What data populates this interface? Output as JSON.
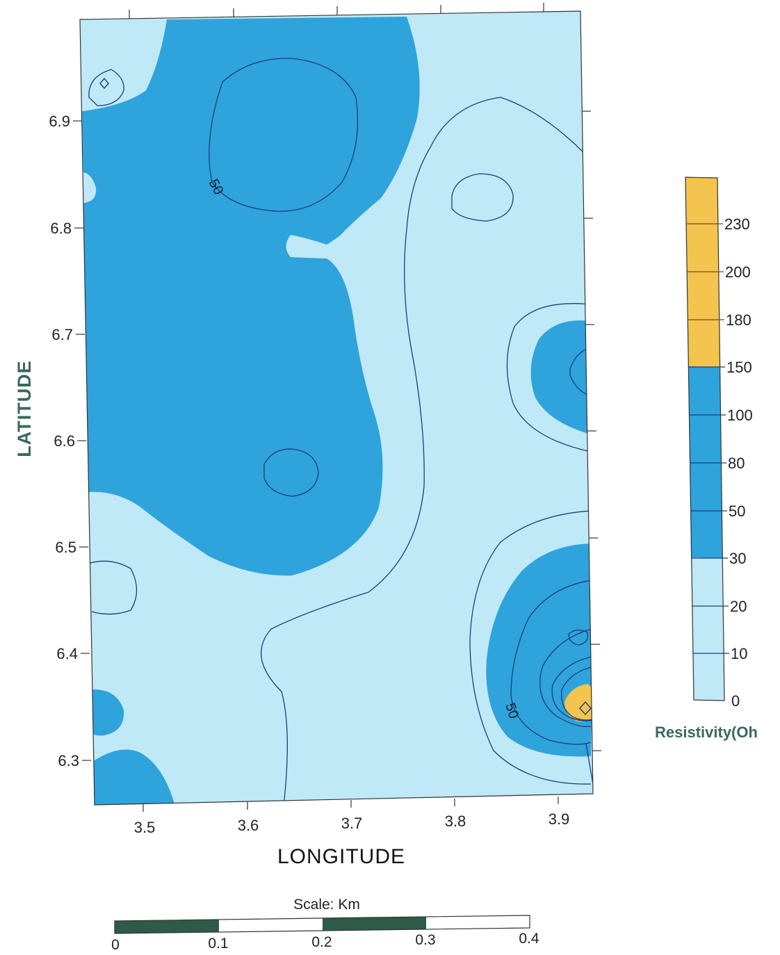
{
  "map": {
    "y_axis_title": "LATITUDE",
    "x_axis_title": "LONGITUDE",
    "x_ticks": [
      "3.5",
      "3.6",
      "3.7",
      "3.8",
      "3.9"
    ],
    "y_ticks": [
      "6.9",
      "6.8",
      "6.7",
      "6.6",
      "6.5",
      "6.4",
      "6.3"
    ],
    "contour_labels": [
      "50",
      "50"
    ],
    "colors": {
      "light": "#bfe9f7",
      "blue": "#2fa3db",
      "orange": "#f3c44e",
      "line": "#1d3c7a"
    }
  },
  "legend": {
    "title": "Resistivity(Oh",
    "levels": [
      "230",
      "200",
      "180",
      "150",
      "100",
      "80",
      "50",
      "30",
      "20",
      "10",
      "0"
    ]
  },
  "scale_bar": {
    "title": "Scale: Km",
    "labels": [
      "0",
      "0.1",
      "0.2",
      "0.3",
      "0.4"
    ],
    "colors": {
      "dark": "#2e5a48",
      "light": "#ffffff"
    }
  }
}
